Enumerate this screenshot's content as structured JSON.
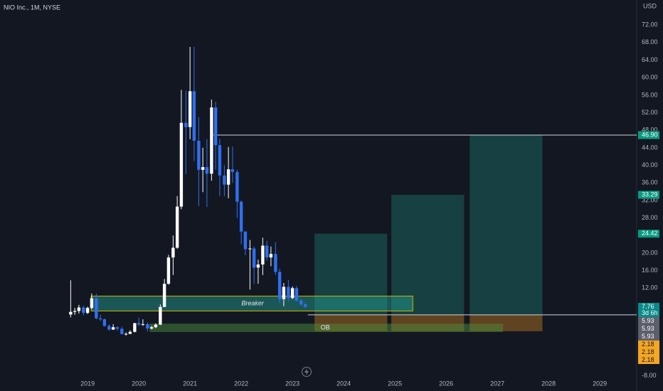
{
  "chart_data": {
    "type": "candlestick",
    "title": "NIO Inc., 1M, NYSE",
    "currency": "USD",
    "up_color": "#ffffff",
    "down_color": "#2f6ff0",
    "grid": false,
    "xlim": [
      2017.29,
      2029.72
    ],
    "ylim": [
      -8.2,
      77.7
    ],
    "xticks": [
      2019,
      2020,
      2021,
      2022,
      2023,
      2024,
      2025,
      2026,
      2027,
      2028,
      2029
    ],
    "yticks": [
      {
        "value": 72,
        "label": "72.00"
      },
      {
        "value": 68,
        "label": "68.00"
      },
      {
        "value": 64,
        "label": "64.00"
      },
      {
        "value": 60,
        "label": "60.00"
      },
      {
        "value": 56,
        "label": "56.00"
      },
      {
        "value": 52,
        "label": "52.00"
      },
      {
        "value": 48,
        "label": "48.00"
      },
      {
        "value": 44,
        "label": "44.00"
      },
      {
        "value": 40,
        "label": "40.00"
      },
      {
        "value": 36,
        "label": "36.00"
      },
      {
        "value": 32,
        "label": "32.00"
      },
      {
        "value": 28,
        "label": "28.00"
      },
      {
        "value": 24,
        "label": "24.00"
      },
      {
        "value": 20,
        "label": "20.00"
      },
      {
        "value": 16,
        "label": "16.00"
      },
      {
        "value": 12,
        "label": "12.00"
      },
      {
        "value": -8,
        "label": "-8.00"
      }
    ],
    "x": [
      2018.67,
      2018.75,
      2018.83,
      2018.92,
      2019.0,
      2019.08,
      2019.17,
      2019.25,
      2019.33,
      2019.42,
      2019.5,
      2019.58,
      2019.67,
      2019.75,
      2019.83,
      2019.92,
      2020.0,
      2020.08,
      2020.17,
      2020.25,
      2020.33,
      2020.42,
      2020.5,
      2020.58,
      2020.67,
      2020.75,
      2020.83,
      2020.92,
      2021.0,
      2021.08,
      2021.17,
      2021.25,
      2021.33,
      2021.42,
      2021.5,
      2021.58,
      2021.67,
      2021.75,
      2021.83,
      2021.92,
      2022.0,
      2022.08,
      2022.17,
      2022.25,
      2022.33,
      2022.42,
      2022.5,
      2022.58,
      2022.67,
      2022.75,
      2022.83,
      2022.92,
      2023.0,
      2023.08,
      2023.17,
      2023.25
    ],
    "open": [
      6.0,
      6.6,
      6.8,
      7.6,
      6.37,
      7.5,
      9.7,
      5.11,
      4.9,
      3.4,
      2.56,
      3.1,
      2.75,
      1.55,
      1.6,
      2.05,
      4.02,
      3.7,
      3.8,
      2.8,
      3.1,
      3.7,
      7.72,
      13.0,
      19.0,
      21.22,
      30.6,
      49.7,
      48.74,
      56.9,
      45.6,
      38.98,
      39.6,
      38.1,
      53.2,
      44.6,
      37.7,
      35.6,
      39.1,
      38.5,
      31.7,
      24.9,
      20.9,
      21.05,
      16.7,
      17.4,
      21.7,
      19.0,
      19.8,
      15.7,
      9.5,
      12.3,
      9.75,
      12.0,
      9.2,
      8.31
    ],
    "high": [
      13.8,
      7.5,
      8.2,
      8.0,
      7.8,
      10.8,
      10.8,
      6.0,
      5.1,
      3.8,
      3.8,
      3.3,
      3.2,
      1.9,
      2.4,
      4.1,
      5.3,
      4.9,
      4.2,
      3.4,
      4.0,
      8.3,
      14.1,
      19.6,
      24.0,
      33.0,
      57.2,
      57.0,
      67.0,
      66.99,
      51.0,
      44.0,
      46.0,
      55.0,
      54.5,
      46.0,
      40.0,
      44.2,
      44.3,
      39.0,
      32.0,
      25.0,
      23.0,
      21.5,
      18.5,
      23.5,
      22.8,
      21.5,
      22.5,
      16.5,
      13.2,
      13.9,
      12.4,
      12.5,
      9.5,
      8.8
    ],
    "low": [
      5.35,
      5.9,
      6.2,
      5.8,
      6.1,
      7.2,
      4.9,
      4.5,
      3.2,
      2.3,
      2.5,
      2.3,
      1.4,
      1.19,
      1.5,
      1.9,
      3.4,
      3.4,
      2.11,
      2.6,
      2.9,
      3.6,
      7.7,
      12.8,
      15.0,
      21.0,
      30.0,
      38.0,
      46.0,
      41.0,
      30.7,
      33.9,
      30.5,
      36.5,
      39.0,
      33.0,
      33.0,
      32.5,
      36.0,
      28.0,
      22.0,
      19.5,
      11.67,
      13.0,
      13.0,
      15.0,
      18.2,
      17.0,
      15.0,
      8.61,
      7.9,
      9.0,
      9.5,
      8.9,
      8.0,
      7.5
    ],
    "close": [
      6.6,
      6.8,
      7.6,
      6.37,
      7.5,
      9.7,
      5.11,
      4.9,
      3.4,
      2.56,
      3.1,
      2.75,
      1.55,
      1.6,
      2.05,
      4.02,
      3.7,
      3.8,
      2.8,
      3.1,
      3.7,
      7.72,
      13.0,
      19.0,
      21.22,
      30.6,
      49.7,
      48.74,
      56.9,
      45.6,
      38.98,
      39.6,
      38.1,
      53.2,
      44.6,
      37.7,
      35.6,
      39.1,
      38.5,
      31.7,
      24.9,
      20.9,
      21.05,
      16.7,
      17.4,
      21.7,
      19.0,
      19.8,
      15.7,
      9.5,
      12.3,
      9.75,
      12.0,
      9.2,
      8.31,
      7.76
    ],
    "zones": [
      {
        "label": "Breaker",
        "x": [
          2019.07,
          2025.35
        ],
        "y": [
          6.8,
          10.2
        ],
        "fill": "rgba(38,166,154,0.45)",
        "stroke": "#c8b400"
      },
      {
        "label": "OB",
        "x": [
          2020.21,
          2027.11
        ],
        "y": [
          2.0,
          3.9
        ],
        "fill": "rgba(76,140,60,0.5)",
        "stroke": "none"
      }
    ],
    "positions": [
      {
        "x": [
          2023.43,
          2024.85
        ],
        "entry": 5.93,
        "target": 24.42,
        "stop": 2.18
      },
      {
        "x": [
          2024.93,
          2026.35
        ],
        "entry": 5.93,
        "target": 33.29,
        "stop": 2.18
      },
      {
        "x": [
          2026.46,
          2027.88
        ],
        "entry": 5.93,
        "target": 46.9,
        "stop": 2.18
      }
    ],
    "lines": [
      {
        "value": 46.9,
        "from": 2021.46
      },
      {
        "value": 5.93,
        "from": 2023.3
      }
    ],
    "price_labels": [
      {
        "value": 46.9,
        "label": "46.90",
        "color": "#089981"
      },
      {
        "value": 33.29,
        "label": "33.29",
        "color": "#089981"
      },
      {
        "value": 24.42,
        "label": "24.42",
        "color": "#089981"
      },
      {
        "value": 7.76,
        "label": "7.76",
        "sub": "3d 6h",
        "color": "#0a8a8a"
      },
      {
        "value": 5.93,
        "label": "5.93",
        "color": "#5d606b"
      },
      {
        "value": 5.93,
        "label": "5.93",
        "color": "#5d606b"
      },
      {
        "value": 5.93,
        "label": "5.93",
        "color": "#5d606b"
      },
      {
        "value": 2.18,
        "label": "2.18",
        "color": "#f5a623"
      },
      {
        "value": 2.18,
        "label": "2.18",
        "color": "#f5a623"
      },
      {
        "value": 2.18,
        "label": "2.18",
        "color": "#f5a623"
      }
    ]
  }
}
